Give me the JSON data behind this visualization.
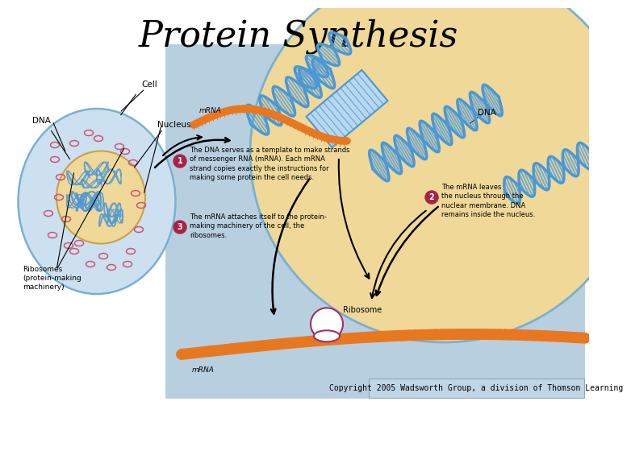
{
  "title": "Protein Synthesis",
  "copyright_text": "Copyright 2005 Wadsworth Group, a division of Thomson Learning",
  "bg_color": "#ffffff",
  "diagram_bg": "#b8cfe0",
  "nucleus_fill": "#f0d898",
  "cell_fill": "#cde0f0",
  "cell_border": "#7ab0d0",
  "nucleus_border": "#c8a050",
  "dna_color": "#4a98d8",
  "dna_fill": "#b8d8f0",
  "mrna_color": "#e87820",
  "ribosome_fill": "#ffffff",
  "ribosome_border": "#993366",
  "text_color": "#000000",
  "step_fill": "#aa2244",
  "copyright_bg": "#c0d5e5",
  "copyright_border": "#90a8bc",
  "title_fontsize": 32,
  "label_fontsize": 7.5,
  "step_fontsize": 6,
  "copyright_fontsize": 7
}
